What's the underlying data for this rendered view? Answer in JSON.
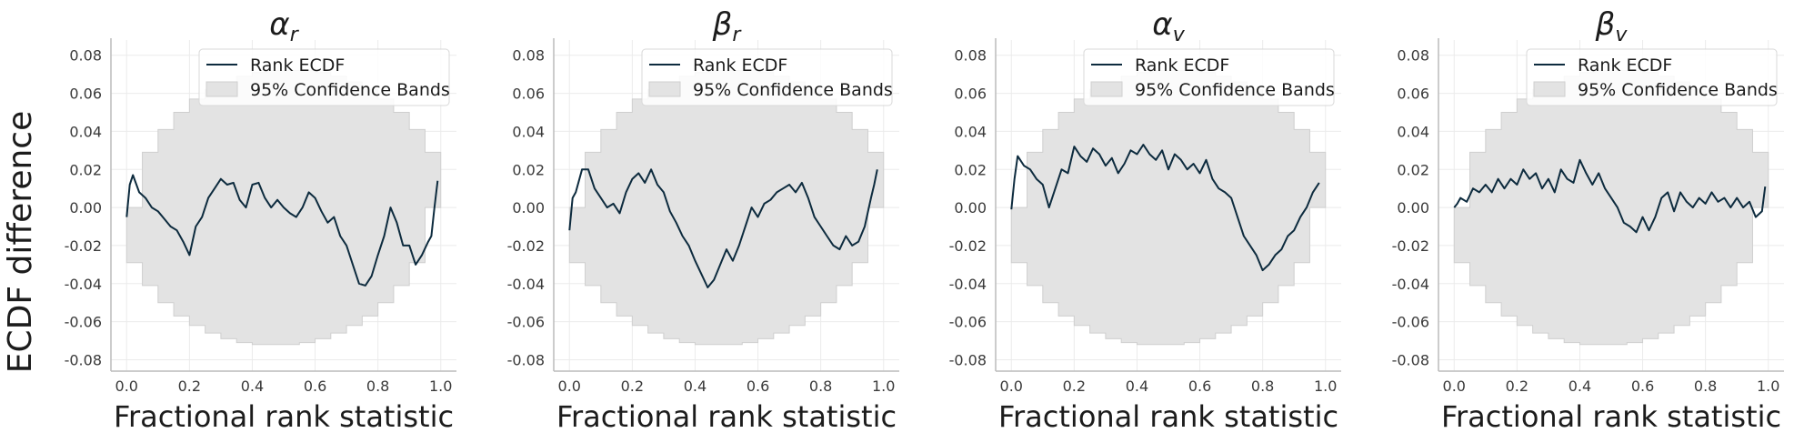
{
  "figure": {
    "ylabel": "ECDF difference",
    "legend": {
      "line_label": "Rank ECDF",
      "band_label": "95% Confidence Bands",
      "position": "top-right"
    },
    "colors": {
      "line": "#0d2b3e",
      "band": "#e3e3e3",
      "band_edge": "#cfcfcf",
      "grid": "#ebebeb",
      "axis": "#bcbcbc"
    }
  },
  "chart_data": [
    {
      "type": "line",
      "title": {
        "symbol": "α",
        "subscript": "r"
      },
      "xlabel": "Fractional rank statistic",
      "ylabel": "ECDF difference",
      "xlim": [
        -0.05,
        1.05
      ],
      "ylim": [
        -0.086,
        0.088
      ],
      "xticks": [
        "0.0",
        "0.2",
        "0.4",
        "0.6",
        "0.8",
        "1.0"
      ],
      "yticks": [
        "0.08",
        "0.06",
        "0.04",
        "0.02",
        "0.00",
        "-0.02",
        "-0.04",
        "-0.06",
        "-0.08"
      ],
      "grid": true,
      "series": [
        {
          "name": "Rank ECDF",
          "x": [
            0.0,
            0.01,
            0.02,
            0.04,
            0.06,
            0.08,
            0.1,
            0.12,
            0.14,
            0.16,
            0.18,
            0.2,
            0.22,
            0.24,
            0.26,
            0.28,
            0.3,
            0.32,
            0.34,
            0.36,
            0.38,
            0.4,
            0.42,
            0.44,
            0.46,
            0.48,
            0.5,
            0.52,
            0.54,
            0.56,
            0.58,
            0.6,
            0.62,
            0.64,
            0.66,
            0.68,
            0.7,
            0.72,
            0.74,
            0.76,
            0.78,
            0.8,
            0.82,
            0.84,
            0.86,
            0.88,
            0.9,
            0.92,
            0.94,
            0.96,
            0.97,
            0.98,
            0.99
          ],
          "values": [
            -0.005,
            0.012,
            0.017,
            0.008,
            0.005,
            0.0,
            -0.002,
            -0.006,
            -0.01,
            -0.012,
            -0.018,
            -0.025,
            -0.01,
            -0.005,
            0.005,
            0.01,
            0.015,
            0.012,
            0.013,
            0.004,
            0.0,
            0.012,
            0.013,
            0.005,
            0.0,
            0.004,
            0.0,
            -0.003,
            -0.005,
            0.0,
            0.008,
            0.005,
            -0.002,
            -0.008,
            -0.005,
            -0.015,
            -0.02,
            -0.03,
            -0.04,
            -0.041,
            -0.036,
            -0.025,
            -0.015,
            0.0,
            -0.008,
            -0.02,
            -0.02,
            -0.03,
            -0.025,
            -0.018,
            -0.015,
            0.0,
            0.014
          ]
        },
        {
          "name": "95% Confidence Bands",
          "x": [
            0.0,
            0.05,
            0.1,
            0.15,
            0.2,
            0.25,
            0.3,
            0.35,
            0.4,
            0.45,
            0.5,
            0.55,
            0.6,
            0.65,
            0.7,
            0.75,
            0.8,
            0.85,
            0.9,
            0.95,
            1.0
          ],
          "upper": [
            0.0,
            0.029,
            0.041,
            0.05,
            0.057,
            0.062,
            0.066,
            0.069,
            0.071,
            0.072,
            0.072,
            0.072,
            0.071,
            0.069,
            0.066,
            0.062,
            0.057,
            0.05,
            0.041,
            0.029,
            0.0
          ],
          "lower": [
            0.0,
            -0.029,
            -0.041,
            -0.05,
            -0.057,
            -0.062,
            -0.066,
            -0.069,
            -0.071,
            -0.072,
            -0.072,
            -0.072,
            -0.071,
            -0.069,
            -0.066,
            -0.062,
            -0.057,
            -0.05,
            -0.041,
            -0.029,
            0.0
          ]
        }
      ]
    },
    {
      "type": "line",
      "title": {
        "symbol": "β",
        "subscript": "r"
      },
      "xlabel": "Fractional rank statistic",
      "ylabel": "",
      "xlim": [
        -0.05,
        1.05
      ],
      "ylim": [
        -0.086,
        0.088
      ],
      "xticks": [
        "0.0",
        "0.2",
        "0.4",
        "0.6",
        "0.8",
        "1.0"
      ],
      "yticks": [
        "0.08",
        "0.06",
        "0.04",
        "0.02",
        "0.00",
        "-0.02",
        "-0.04",
        "-0.06",
        "-0.08"
      ],
      "grid": true,
      "series": [
        {
          "name": "Rank ECDF",
          "x": [
            0.0,
            0.01,
            0.02,
            0.04,
            0.06,
            0.08,
            0.1,
            0.12,
            0.14,
            0.16,
            0.18,
            0.2,
            0.22,
            0.24,
            0.26,
            0.28,
            0.3,
            0.32,
            0.34,
            0.36,
            0.38,
            0.4,
            0.42,
            0.44,
            0.46,
            0.48,
            0.5,
            0.52,
            0.54,
            0.56,
            0.58,
            0.6,
            0.62,
            0.64,
            0.66,
            0.68,
            0.7,
            0.72,
            0.74,
            0.76,
            0.78,
            0.8,
            0.82,
            0.84,
            0.86,
            0.88,
            0.9,
            0.92,
            0.94,
            0.96,
            0.97,
            0.98
          ],
          "values": [
            -0.012,
            0.005,
            0.008,
            0.02,
            0.02,
            0.01,
            0.005,
            0.0,
            0.002,
            -0.003,
            0.008,
            0.015,
            0.018,
            0.013,
            0.02,
            0.012,
            0.008,
            -0.002,
            -0.008,
            -0.015,
            -0.02,
            -0.028,
            -0.035,
            -0.042,
            -0.038,
            -0.03,
            -0.022,
            -0.028,
            -0.02,
            -0.01,
            0.0,
            -0.005,
            0.002,
            0.004,
            0.008,
            0.01,
            0.012,
            0.008,
            0.013,
            0.005,
            -0.005,
            -0.01,
            -0.015,
            -0.02,
            -0.022,
            -0.015,
            -0.02,
            -0.018,
            -0.01,
            0.005,
            0.012,
            0.02
          ]
        },
        {
          "name": "95% Confidence Bands",
          "x": [
            0.0,
            0.05,
            0.1,
            0.15,
            0.2,
            0.25,
            0.3,
            0.35,
            0.4,
            0.45,
            0.5,
            0.55,
            0.6,
            0.65,
            0.7,
            0.75,
            0.8,
            0.85,
            0.9,
            0.95,
            1.0
          ],
          "upper": [
            0.0,
            0.029,
            0.041,
            0.05,
            0.057,
            0.062,
            0.066,
            0.069,
            0.071,
            0.072,
            0.072,
            0.072,
            0.071,
            0.069,
            0.066,
            0.062,
            0.057,
            0.05,
            0.041,
            0.029,
            0.0
          ],
          "lower": [
            0.0,
            -0.029,
            -0.041,
            -0.05,
            -0.057,
            -0.062,
            -0.066,
            -0.069,
            -0.071,
            -0.072,
            -0.072,
            -0.072,
            -0.071,
            -0.069,
            -0.066,
            -0.062,
            -0.057,
            -0.05,
            -0.041,
            -0.029,
            0.0
          ]
        }
      ]
    },
    {
      "type": "line",
      "title": {
        "symbol": "α",
        "subscript": "v"
      },
      "xlabel": "Fractional rank statistic",
      "ylabel": "",
      "xlim": [
        -0.05,
        1.05
      ],
      "ylim": [
        -0.086,
        0.088
      ],
      "xticks": [
        "0.0",
        "0.2",
        "0.4",
        "0.6",
        "0.8",
        "1.0"
      ],
      "yticks": [
        "0.08",
        "0.06",
        "0.04",
        "0.02",
        "0.00",
        "-0.02",
        "-0.04",
        "-0.06",
        "-0.08"
      ],
      "grid": true,
      "series": [
        {
          "name": "Rank ECDF",
          "x": [
            0.0,
            0.01,
            0.02,
            0.04,
            0.06,
            0.08,
            0.1,
            0.12,
            0.14,
            0.16,
            0.18,
            0.2,
            0.22,
            0.24,
            0.26,
            0.28,
            0.3,
            0.32,
            0.34,
            0.36,
            0.38,
            0.4,
            0.42,
            0.44,
            0.46,
            0.48,
            0.5,
            0.52,
            0.54,
            0.56,
            0.58,
            0.6,
            0.62,
            0.64,
            0.66,
            0.68,
            0.7,
            0.72,
            0.74,
            0.76,
            0.78,
            0.8,
            0.82,
            0.84,
            0.86,
            0.88,
            0.9,
            0.92,
            0.94,
            0.96,
            0.98
          ],
          "values": [
            -0.001,
            0.015,
            0.027,
            0.022,
            0.02,
            0.015,
            0.012,
            0.0,
            0.01,
            0.02,
            0.018,
            0.032,
            0.027,
            0.024,
            0.031,
            0.028,
            0.022,
            0.026,
            0.018,
            0.023,
            0.03,
            0.028,
            0.033,
            0.028,
            0.025,
            0.03,
            0.02,
            0.028,
            0.025,
            0.02,
            0.023,
            0.018,
            0.025,
            0.015,
            0.01,
            0.008,
            0.005,
            -0.005,
            -0.015,
            -0.02,
            -0.025,
            -0.033,
            -0.03,
            -0.025,
            -0.022,
            -0.015,
            -0.012,
            -0.005,
            0.0,
            0.008,
            0.013
          ]
        },
        {
          "name": "95% Confidence Bands",
          "x": [
            0.0,
            0.05,
            0.1,
            0.15,
            0.2,
            0.25,
            0.3,
            0.35,
            0.4,
            0.45,
            0.5,
            0.55,
            0.6,
            0.65,
            0.7,
            0.75,
            0.8,
            0.85,
            0.9,
            0.95,
            1.0
          ],
          "upper": [
            0.0,
            0.029,
            0.041,
            0.05,
            0.057,
            0.062,
            0.066,
            0.069,
            0.071,
            0.072,
            0.072,
            0.072,
            0.071,
            0.069,
            0.066,
            0.062,
            0.057,
            0.05,
            0.041,
            0.029,
            0.0
          ],
          "lower": [
            0.0,
            -0.029,
            -0.041,
            -0.05,
            -0.057,
            -0.062,
            -0.066,
            -0.069,
            -0.071,
            -0.072,
            -0.072,
            -0.072,
            -0.071,
            -0.069,
            -0.066,
            -0.062,
            -0.057,
            -0.05,
            -0.041,
            -0.029,
            0.0
          ]
        }
      ]
    },
    {
      "type": "line",
      "title": {
        "symbol": "β",
        "subscript": "v"
      },
      "xlabel": "Fractional rank statistic",
      "ylabel": "",
      "xlim": [
        -0.05,
        1.05
      ],
      "ylim": [
        -0.086,
        0.088
      ],
      "xticks": [
        "0.0",
        "0.2",
        "0.4",
        "0.6",
        "0.8",
        "1.0"
      ],
      "yticks": [
        "0.08",
        "0.06",
        "0.04",
        "0.02",
        "0.00",
        "-0.02",
        "-0.04",
        "-0.06",
        "-0.08"
      ],
      "grid": true,
      "series": [
        {
          "name": "Rank ECDF",
          "x": [
            0.0,
            0.01,
            0.02,
            0.04,
            0.06,
            0.08,
            0.1,
            0.12,
            0.14,
            0.16,
            0.18,
            0.2,
            0.22,
            0.24,
            0.26,
            0.28,
            0.3,
            0.32,
            0.34,
            0.36,
            0.38,
            0.4,
            0.42,
            0.44,
            0.46,
            0.48,
            0.5,
            0.52,
            0.54,
            0.56,
            0.58,
            0.6,
            0.62,
            0.64,
            0.66,
            0.68,
            0.7,
            0.72,
            0.74,
            0.76,
            0.78,
            0.8,
            0.82,
            0.84,
            0.86,
            0.88,
            0.9,
            0.92,
            0.94,
            0.96,
            0.98,
            0.99
          ],
          "values": [
            0.0,
            0.002,
            0.005,
            0.003,
            0.01,
            0.008,
            0.012,
            0.008,
            0.015,
            0.01,
            0.015,
            0.012,
            0.02,
            0.015,
            0.018,
            0.01,
            0.015,
            0.008,
            0.02,
            0.015,
            0.013,
            0.025,
            0.018,
            0.012,
            0.018,
            0.01,
            0.005,
            0.0,
            -0.008,
            -0.01,
            -0.013,
            -0.005,
            -0.012,
            -0.005,
            0.005,
            0.008,
            -0.002,
            0.008,
            0.003,
            0.0,
            0.005,
            0.002,
            0.008,
            0.003,
            0.005,
            0.0,
            0.005,
            0.0,
            0.003,
            -0.005,
            -0.002,
            0.011
          ]
        },
        {
          "name": "95% Confidence Bands",
          "x": [
            0.0,
            0.05,
            0.1,
            0.15,
            0.2,
            0.25,
            0.3,
            0.35,
            0.4,
            0.45,
            0.5,
            0.55,
            0.6,
            0.65,
            0.7,
            0.75,
            0.8,
            0.85,
            0.9,
            0.95,
            1.0
          ],
          "upper": [
            0.0,
            0.029,
            0.041,
            0.05,
            0.057,
            0.062,
            0.066,
            0.069,
            0.071,
            0.072,
            0.072,
            0.072,
            0.071,
            0.069,
            0.066,
            0.062,
            0.057,
            0.05,
            0.041,
            0.029,
            0.0
          ],
          "lower": [
            0.0,
            -0.029,
            -0.041,
            -0.05,
            -0.057,
            -0.062,
            -0.066,
            -0.069,
            -0.071,
            -0.072,
            -0.072,
            -0.072,
            -0.071,
            -0.069,
            -0.066,
            -0.062,
            -0.057,
            -0.05,
            -0.041,
            -0.029,
            0.0
          ]
        }
      ]
    }
  ]
}
